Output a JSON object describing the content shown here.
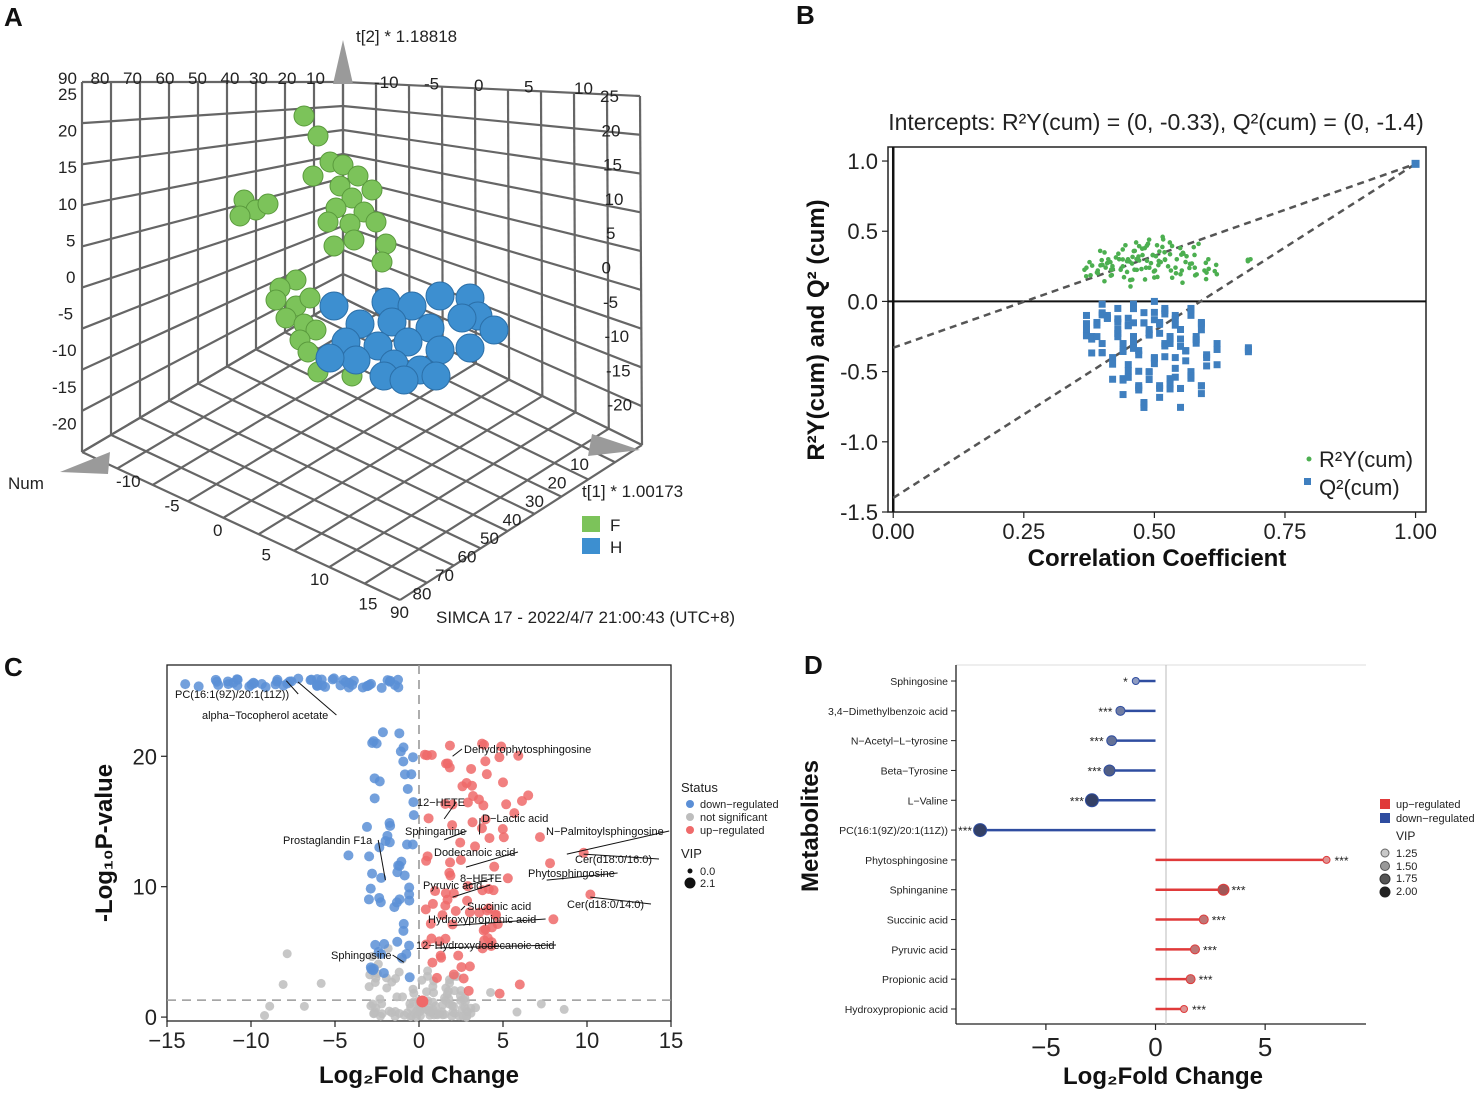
{
  "colors": {
    "green": "#7cc35a",
    "blue": "#3d8fd0",
    "down": "#5b8fd6",
    "up": "#ef6a6a",
    "ns": "#bdbdbd",
    "lolli_up": "#e03a3a",
    "lolli_down": "#2f4da0"
  },
  "panel_labels": [
    "A",
    "B",
    "C",
    "D"
  ],
  "chart_data": [
    {
      "id": "A",
      "type": "scatter",
      "subtype": "3d-scatter",
      "axes": {
        "t2_label": "t[2] * 1.18818",
        "t1_label": "t[1] * 1.00173",
        "num_label": "Num",
        "footer": "SIMCA 17 - 2022/4/7 21:00:43 (UTC+8)",
        "top_left_ticks": [
          "90",
          "80",
          "70",
          "60",
          "50",
          "40",
          "30",
          "20",
          "10"
        ],
        "top_right_ticks": [
          "-10",
          "-5",
          "0",
          "5",
          "10"
        ],
        "left_ticks": [
          "25",
          "20",
          "15",
          "10",
          "5",
          "0",
          "-5",
          "-10",
          "-15",
          "-20"
        ],
        "right_ticks": [
          "25",
          "20",
          "15",
          "10",
          "5",
          "0",
          "-5",
          "-10",
          "-15",
          "-20"
        ],
        "bottom_left_ticks": [
          "-10",
          "-5",
          "0",
          "5",
          "10",
          "15"
        ],
        "bottom_right_ticks": [
          "10",
          "20",
          "30",
          "40",
          "50",
          "60",
          "70",
          "80",
          "90"
        ]
      },
      "legend": [
        {
          "name": "F",
          "color": "#7cc35a"
        },
        {
          "name": "H",
          "color": "#3d8fd0"
        }
      ]
    },
    {
      "id": "B",
      "type": "scatter",
      "title": "Intercepts: R²Y(cum) = (0, -0.33), Q²(cum) = (0, -1.4)",
      "xlabel": "Correlation Coefficient",
      "ylabel": "R²Y(cum) and Q² (cum)",
      "xlim": [
        -0.01,
        1.02
      ],
      "ylim": [
        -1.5,
        1.1
      ],
      "xticks": [
        "0.00",
        "0.25",
        "0.50",
        "0.75",
        "1.00"
      ],
      "yticks": [
        "1.0",
        "0.5",
        "0.0",
        "-0.5",
        "-1.0",
        "-1.5"
      ],
      "legend": [
        "R²Y(cum)",
        "Q²(cum)"
      ],
      "intercepts": {
        "r2y": [
          0,
          -0.33
        ],
        "q2": [
          0,
          -1.4
        ]
      },
      "end_point": [
        1.0,
        0.98
      ],
      "series": [
        {
          "name": "R2Y(cum)",
          "color": "#4caf50",
          "points": [
            [
              0.37,
              0.24
            ],
            [
              0.38,
              0.28
            ],
            [
              0.39,
              0.22
            ],
            [
              0.4,
              0.26
            ],
            [
              0.4,
              0.36
            ],
            [
              0.41,
              0.3
            ],
            [
              0.42,
              0.23
            ],
            [
              0.42,
              0.28
            ],
            [
              0.43,
              0.34
            ],
            [
              0.44,
              0.25
            ],
            [
              0.44,
              0.4
            ],
            [
              0.45,
              0.3
            ],
            [
              0.45,
              0.21
            ],
            [
              0.46,
              0.36
            ],
            [
              0.46,
              0.27
            ],
            [
              0.47,
              0.42
            ],
            [
              0.47,
              0.32
            ],
            [
              0.48,
              0.24
            ],
            [
              0.48,
              0.38
            ],
            [
              0.49,
              0.29
            ],
            [
              0.49,
              0.44
            ],
            [
              0.5,
              0.33
            ],
            [
              0.5,
              0.22
            ],
            [
              0.51,
              0.4
            ],
            [
              0.51,
              0.28
            ],
            [
              0.52,
              0.46
            ],
            [
              0.52,
              0.35
            ],
            [
              0.53,
              0.25
            ],
            [
              0.53,
              0.42
            ],
            [
              0.54,
              0.3
            ],
            [
              0.55,
              0.38
            ],
            [
              0.55,
              0.22
            ],
            [
              0.56,
              0.34
            ],
            [
              0.57,
              0.27
            ],
            [
              0.58,
              0.41
            ],
            [
              0.58,
              0.24
            ],
            [
              0.6,
              0.3
            ],
            [
              0.6,
              0.22
            ],
            [
              0.62,
              0.26
            ],
            [
              0.68,
              0.3
            ]
          ]
        },
        {
          "name": "Q2(cum)",
          "color": "#3f7fbf",
          "points": [
            [
              0.37,
              -0.1
            ],
            [
              0.37,
              -0.2
            ],
            [
              0.38,
              -0.25
            ],
            [
              0.39,
              -0.15
            ],
            [
              0.4,
              -0.02
            ],
            [
              0.4,
              -0.3
            ],
            [
              0.41,
              -0.1
            ],
            [
              0.42,
              -0.4
            ],
            [
              0.43,
              -0.2
            ],
            [
              0.43,
              -0.05
            ],
            [
              0.44,
              -0.3
            ],
            [
              0.44,
              -0.55
            ],
            [
              0.45,
              -0.12
            ],
            [
              0.45,
              -0.45
            ],
            [
              0.46,
              -0.02
            ],
            [
              0.46,
              -0.25
            ],
            [
              0.47,
              -0.6
            ],
            [
              0.47,
              -0.35
            ],
            [
              0.48,
              -0.08
            ],
            [
              0.48,
              -0.72
            ],
            [
              0.49,
              -0.2
            ],
            [
              0.49,
              -0.5
            ],
            [
              0.5,
              0.0
            ],
            [
              0.5,
              -0.4
            ],
            [
              0.51,
              -0.15
            ],
            [
              0.51,
              -0.6
            ],
            [
              0.52,
              -0.3
            ],
            [
              0.52,
              -0.05
            ],
            [
              0.53,
              -0.55
            ],
            [
              0.53,
              -0.25
            ],
            [
              0.54,
              -0.1
            ],
            [
              0.54,
              -0.4
            ],
            [
              0.55,
              -0.62
            ],
            [
              0.55,
              -0.2
            ],
            [
              0.56,
              -0.35
            ],
            [
              0.57,
              -0.05
            ],
            [
              0.57,
              -0.5
            ],
            [
              0.58,
              -0.25
            ],
            [
              0.59,
              -0.6
            ],
            [
              0.59,
              -0.15
            ],
            [
              0.6,
              -0.38
            ],
            [
              0.62,
              -0.3
            ],
            [
              0.68,
              -0.33
            ]
          ]
        }
      ]
    },
    {
      "id": "C",
      "type": "scatter",
      "subtype": "volcano",
      "xlabel": "Log₂Fold Change",
      "ylabel": "-Log₁₀P-value",
      "xlim": [
        -15,
        15
      ],
      "ylim": [
        -0.3,
        27
      ],
      "xticks": [
        "−15",
        "−10",
        "−5",
        "0",
        "5",
        "10",
        "15"
      ],
      "yticks": [
        "0",
        "10",
        "20"
      ],
      "legend_title": "Status",
      "legend_items": [
        "down−regulated",
        "not significant",
        "up−regulated"
      ],
      "vip_title": "VIP",
      "vip_values": [
        "0.0",
        "2.1"
      ],
      "annotations": [
        {
          "label": "PC(16:1(9Z)/20:1(11Z))",
          "x": -7.9,
          "y": 25.8
        },
        {
          "label": "alpha−Tocopherol acetate",
          "x": -7.2,
          "y": 25.7
        },
        {
          "label": "Dehydrophytosphingosine",
          "x": 2.0,
          "y": 20.0
        },
        {
          "label": "12−HETE",
          "x": 1.5,
          "y": 15.2
        },
        {
          "label": "D−Lactic acid",
          "x": 3.6,
          "y": 14.0
        },
        {
          "label": "Sphinganine",
          "x": 1.5,
          "y": 13.6
        },
        {
          "label": "N−Palmitoylsphingosine",
          "x": 8.8,
          "y": 12.5
        },
        {
          "label": "Prostaglandin F1a",
          "x": -2.0,
          "y": 10.5
        },
        {
          "label": "Dodecanoic acid",
          "x": 2.8,
          "y": 11.5
        },
        {
          "label": "Cer(d18:0/16:0)",
          "x": 9.8,
          "y": 12.5
        },
        {
          "label": "Phytosphingosine",
          "x": 7.6,
          "y": 10.5
        },
        {
          "label": "8−HETE",
          "x": 2.6,
          "y": 10.0
        },
        {
          "label": "Pyruvic acid",
          "x": 2.0,
          "y": 9.2
        },
        {
          "label": "Cer(d18:0/14:0)",
          "x": 10.2,
          "y": 9.2
        },
        {
          "label": "Succinic acid",
          "x": 2.5,
          "y": 8.2
        },
        {
          "label": "Hydroxypropionic acid",
          "x": 1.8,
          "y": 7.0
        },
        {
          "label": "12−Hydroxydodecanoic acid",
          "x": 1.0,
          "y": 5.3
        },
        {
          "label": "Sphingosine",
          "x": -0.9,
          "y": 4.2
        }
      ]
    },
    {
      "id": "D",
      "type": "bar",
      "subtype": "lollipop",
      "xlabel": "Log₂Fold Change",
      "ylabel": "Metabolites",
      "xlim": [
        -9.1,
        9.6
      ],
      "xticks": [
        "−5",
        "0",
        "5"
      ],
      "categories": [
        "Sphingosine",
        "3,4−Dimethylbenzoic acid",
        "N−Acetyl−L−tyrosine",
        "Beta−Tyrosine",
        "L−Valine",
        "PC(16:1(9Z)/20:1(11Z))",
        "Phytosphingosine",
        "Sphinganine",
        "Succinic acid",
        "Pyruvic acid",
        "Propionic acid",
        "Hydroxypropionic acid"
      ],
      "values": [
        -0.9,
        -1.6,
        -2.0,
        -2.1,
        -2.9,
        -8.0,
        7.8,
        3.1,
        2.2,
        1.8,
        1.6,
        1.3
      ],
      "vip": [
        1.25,
        1.5,
        1.6,
        1.75,
        2.0,
        2.0,
        1.25,
        1.75,
        1.5,
        1.5,
        1.5,
        1.25
      ],
      "significance": [
        "*",
        "***",
        "***",
        "***",
        "***",
        "***",
        "***",
        "***",
        "***",
        "***",
        "***",
        "***"
      ],
      "legend": [
        "up−regulated",
        "down−regulated"
      ],
      "vip_title": "VIP",
      "vip_legend": [
        "1.25",
        "1.50",
        "1.75",
        "2.00"
      ]
    }
  ]
}
